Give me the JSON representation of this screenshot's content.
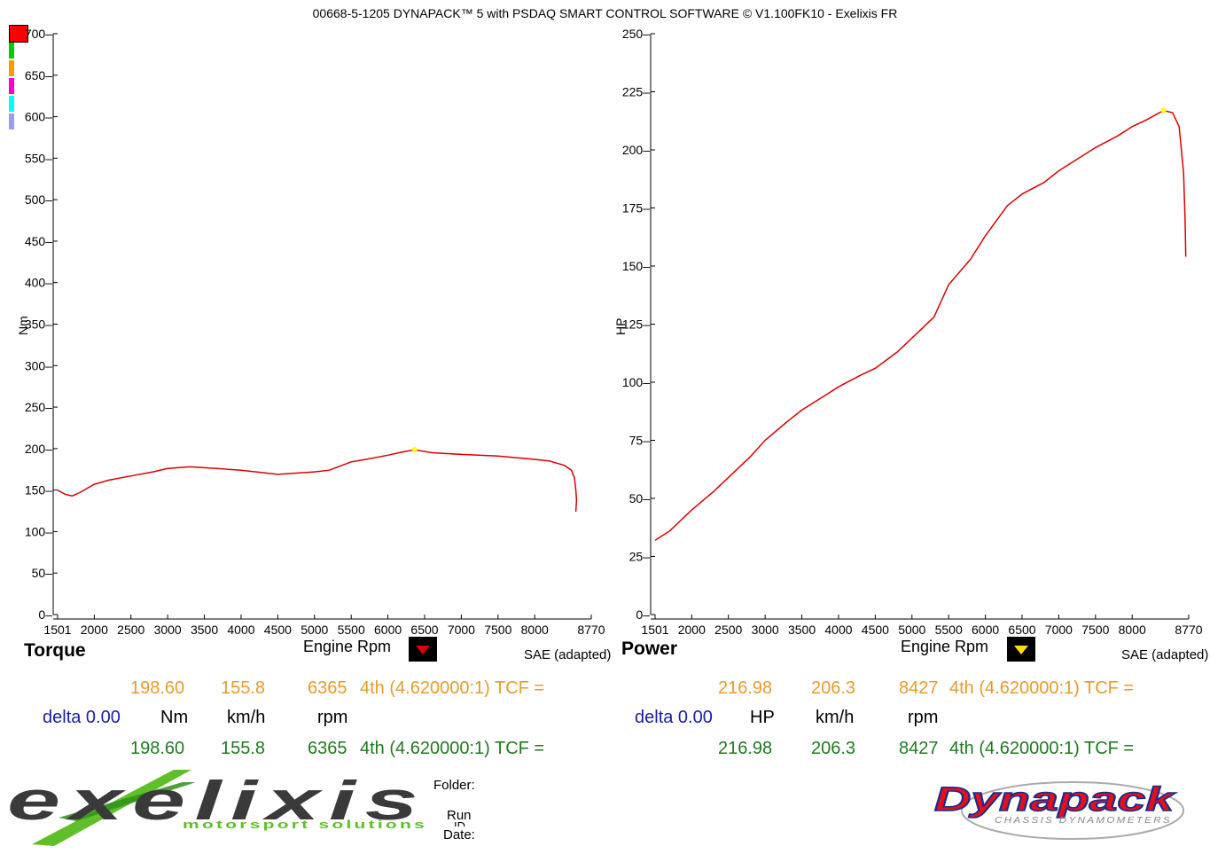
{
  "header": {
    "title": "00668-5-1205 DYNAPACK™ 5 with PSDAQ SMART CONTROL SOFTWARE © V1.100FK10 - Exelixis FR"
  },
  "legend_swatches": [
    "#ff0000",
    "#00cc00",
    "#ff9900",
    "#ff00cc",
    "#00ffff",
    "#9999ff"
  ],
  "colors": {
    "curve": "#dd0000",
    "marker": "#ffff00",
    "axis": "#000000"
  },
  "torque_panel": {
    "title": "Torque",
    "xlabel": "Engine Rpm",
    "mode": "SAE (adapted)",
    "button_color": "#dd0000",
    "reading_top": {
      "value": "198.60",
      "speed": "155.8",
      "rpm": "6365",
      "gear": "4th (4.620000:1) TCF ="
    },
    "units": {
      "delta": "delta 0.00",
      "value": "Nm",
      "speed": "km/h",
      "rpm": "rpm"
    },
    "reading_bottom": {
      "value": "198.60",
      "speed": "155.8",
      "rpm": "6365",
      "gear": "4th (4.620000:1) TCF ="
    }
  },
  "power_panel": {
    "title": "Power",
    "xlabel": "Engine Rpm",
    "mode": "SAE (adapted)",
    "button_color": "#ffdd00",
    "reading_top": {
      "value": "216.98",
      "speed": "206.3",
      "rpm": "8427",
      "gear": "4th (4.620000:1) TCF ="
    },
    "units": {
      "delta": "delta 0.00",
      "value": "HP",
      "speed": "km/h",
      "rpm": "rpm"
    },
    "reading_bottom": {
      "value": "216.98",
      "speed": "206.3",
      "rpm": "8427",
      "gear": "4th (4.620000:1) TCF ="
    }
  },
  "footer": {
    "folder_label": "Folder:",
    "run_label": "Run",
    "id_label": "ID",
    "date_label": "Date:",
    "left_logo_text": "exelixis",
    "left_logo_subtitle": "motorsport solutions",
    "right_logo_text": "Dynapack",
    "right_logo_subtitle": "CHASSIS DYNAMOMETERS"
  },
  "chart_data": [
    {
      "type": "line",
      "ylabel": "Nm",
      "xlabel": "Engine Rpm",
      "xlim": [
        1501,
        8770
      ],
      "ylim": [
        0,
        700
      ],
      "xticks": [
        "1501",
        "2000",
        "2500",
        "3000",
        "3500",
        "4000",
        "4500",
        "5000",
        "5500",
        "6000",
        "6500",
        "7000",
        "7500",
        "8000",
        "8770"
      ],
      "xtick_values": [
        1501,
        2000,
        2500,
        3000,
        3500,
        4000,
        4500,
        5000,
        5500,
        6000,
        6500,
        7000,
        7500,
        8000,
        8770
      ],
      "yticks": [
        0,
        50,
        100,
        150,
        200,
        250,
        300,
        350,
        400,
        450,
        500,
        550,
        600,
        650,
        700
      ],
      "series": [
        {
          "x": [
            1501,
            1600,
            1700,
            1800,
            2000,
            2200,
            2500,
            2800,
            3000,
            3300,
            3500,
            4000,
            4500,
            5000,
            5200,
            5500,
            5700,
            6000,
            6200,
            6365,
            6600,
            7000,
            7500,
            8000,
            8200,
            8400,
            8500,
            8540,
            8560,
            8570,
            8560
          ],
          "y": [
            150,
            145,
            143,
            147,
            157,
            162,
            167,
            172,
            176,
            178,
            177,
            174,
            169,
            172,
            174,
            184,
            187,
            192,
            196,
            198.6,
            195,
            193,
            191,
            187,
            185,
            180,
            174,
            165,
            150,
            138,
            124
          ]
        }
      ],
      "marker": {
        "x": 6365,
        "y": 198.6
      }
    },
    {
      "type": "line",
      "ylabel": "HP",
      "xlabel": "Engine Rpm",
      "xlim": [
        1501,
        8770
      ],
      "ylim": [
        0,
        250
      ],
      "xticks": [
        "1501",
        "2000",
        "2500",
        "3000",
        "3500",
        "4000",
        "4500",
        "5000",
        "5500",
        "6000",
        "6500",
        "7000",
        "7500",
        "8000",
        "8770"
      ],
      "xtick_values": [
        1501,
        2000,
        2500,
        3000,
        3500,
        4000,
        4500,
        5000,
        5500,
        6000,
        6500,
        7000,
        7500,
        8000,
        8770
      ],
      "yticks": [
        0,
        25,
        50,
        75,
        100,
        125,
        150,
        175,
        200,
        225,
        250
      ],
      "series": [
        {
          "x": [
            1501,
            1700,
            2000,
            2300,
            2500,
            2800,
            3000,
            3300,
            3500,
            3800,
            4000,
            4300,
            4500,
            4800,
            5000,
            5300,
            5500,
            5800,
            6000,
            6300,
            6500,
            6800,
            7000,
            7300,
            7500,
            7800,
            8000,
            8200,
            8427,
            8550,
            8640,
            8700,
            8720,
            8730
          ],
          "y": [
            32,
            36,
            45,
            53,
            59,
            68,
            75,
            83,
            88,
            94,
            98,
            103,
            106,
            113,
            119,
            128,
            142,
            153,
            163,
            176,
            181,
            186,
            191,
            197,
            201,
            206,
            210,
            213,
            217,
            216,
            210,
            190,
            170,
            154
          ]
        }
      ],
      "marker": {
        "x": 8427,
        "y": 216.98
      }
    }
  ]
}
